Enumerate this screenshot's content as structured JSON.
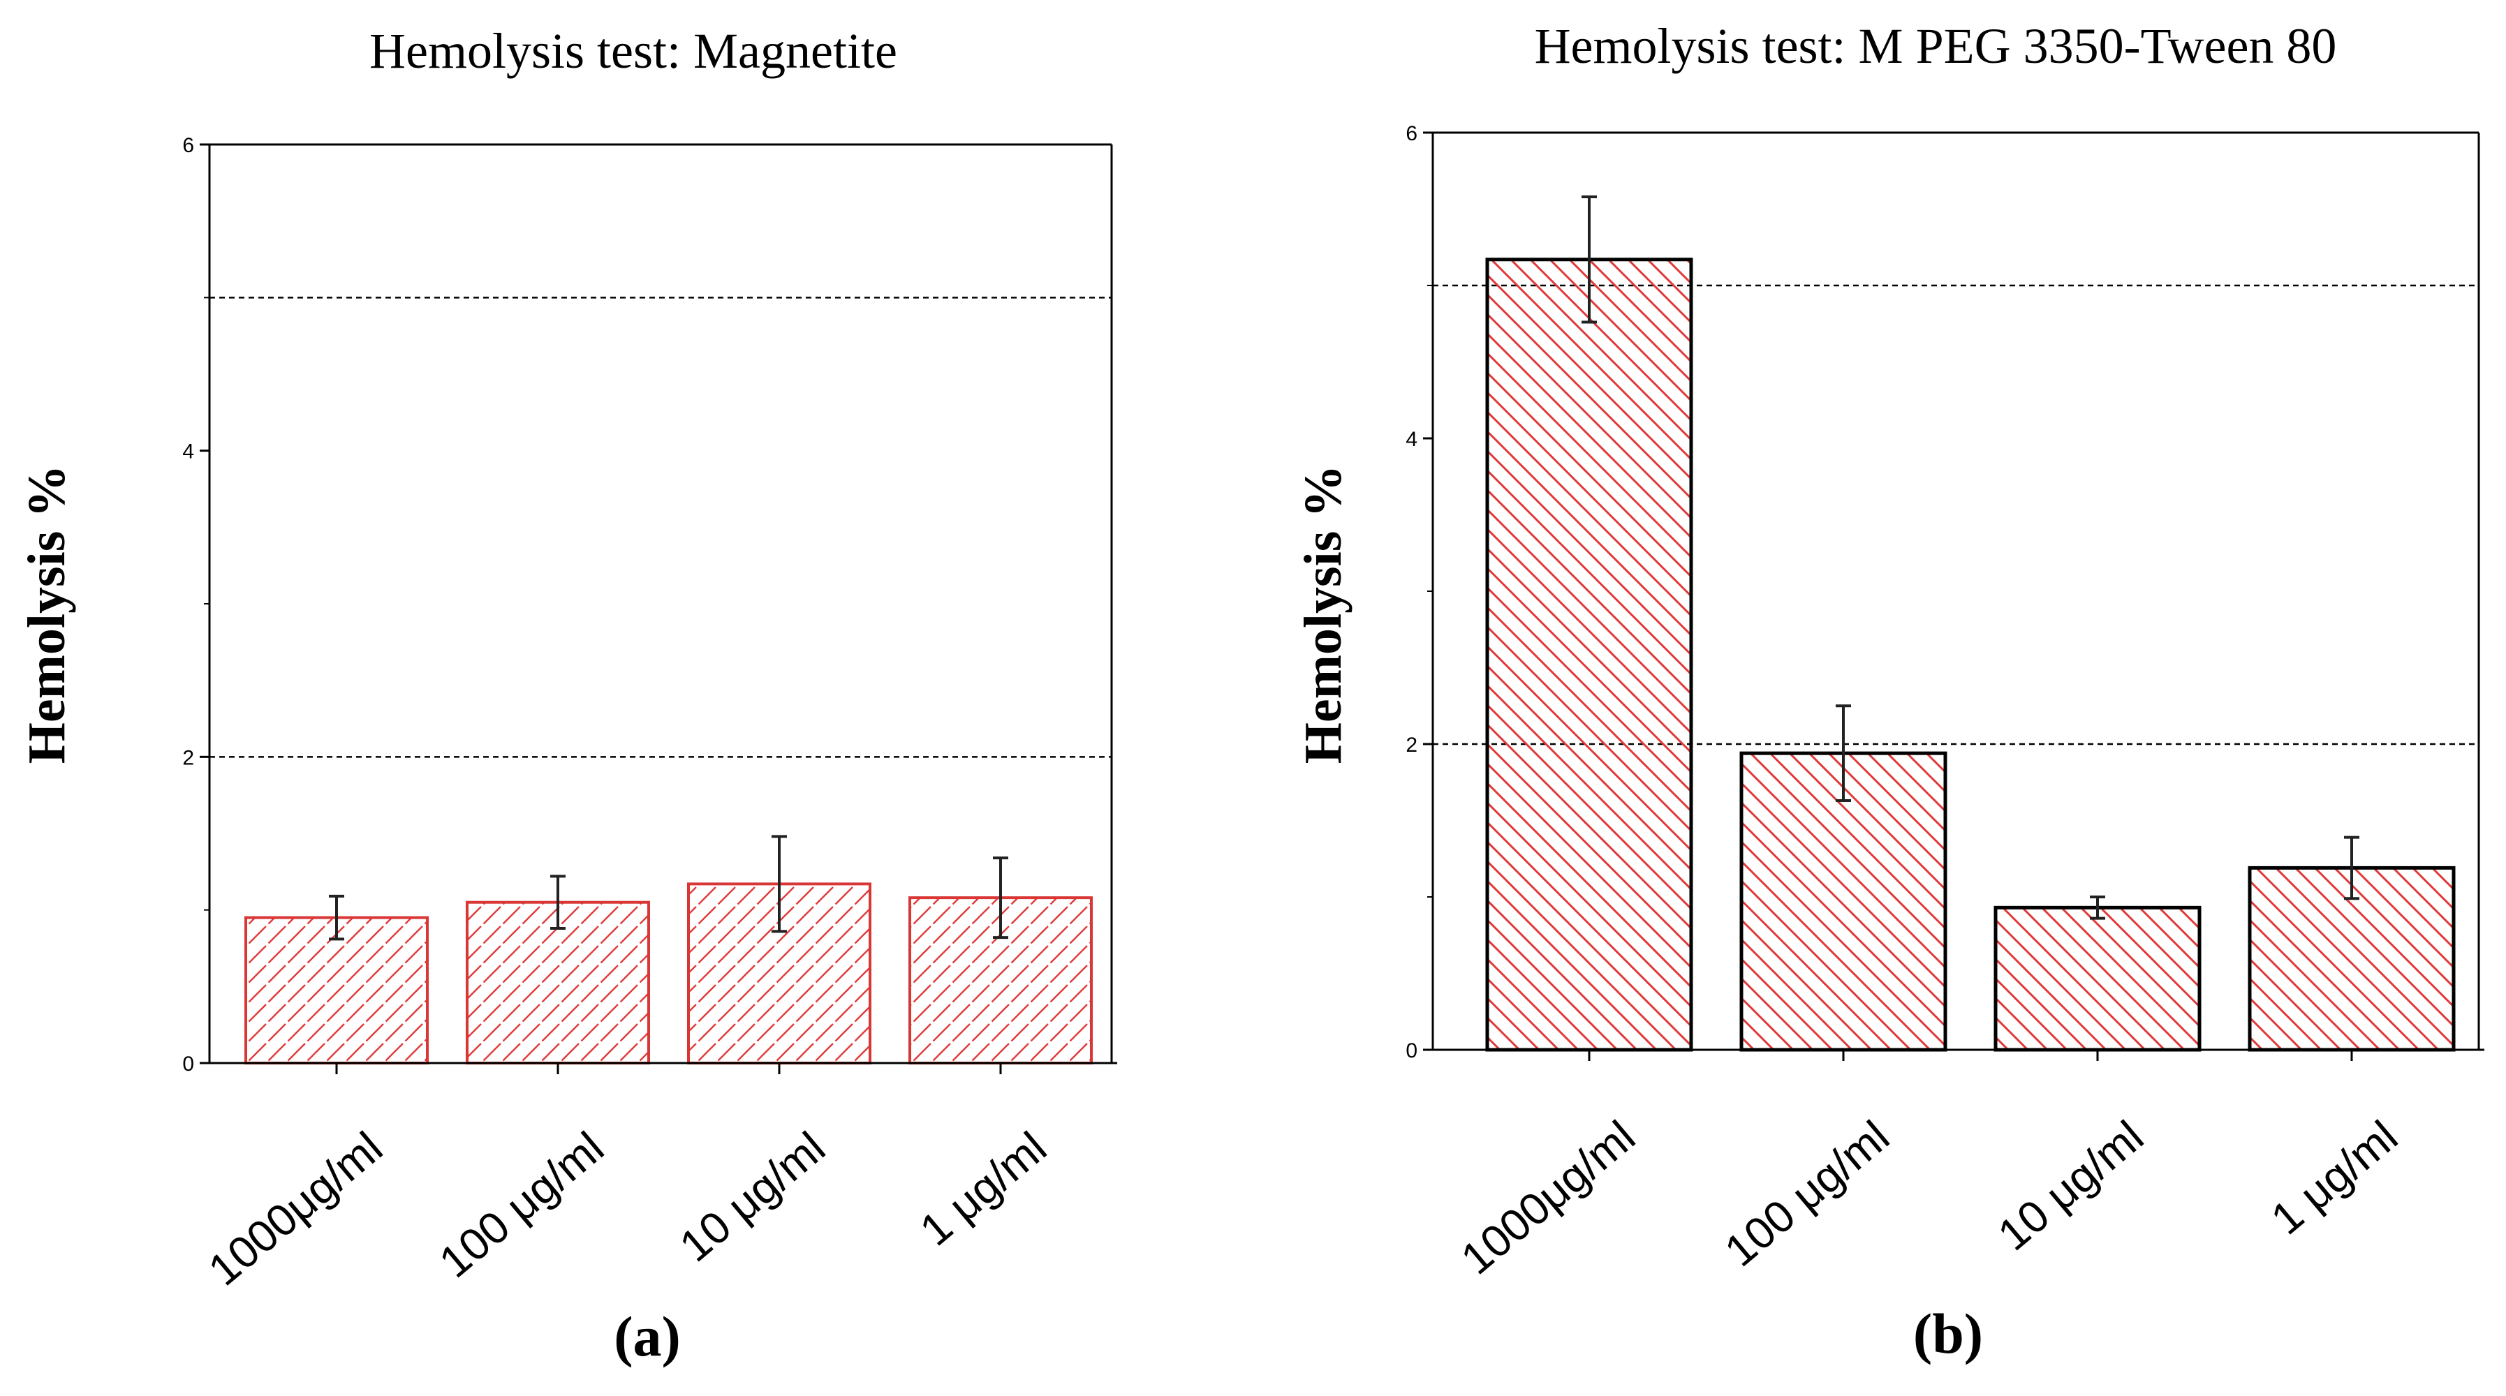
{
  "chart_data": [
    {
      "type": "bar",
      "panel_label": "(a)",
      "title": "Hemolysis test: Magnetite",
      "xlabel": "",
      "ylabel": "Hemolysis %",
      "ylim": [
        0,
        6
      ],
      "yticks": [
        "0",
        "2",
        "4",
        "6"
      ],
      "categories": [
        "1000μg/ml",
        "100 μg/ml",
        "10 μg/ml",
        "1 μg/ml"
      ],
      "values": [
        0.95,
        1.05,
        1.17,
        1.08
      ],
      "errors": [
        0.14,
        0.17,
        0.31,
        0.26
      ],
      "reference_lines": [
        2,
        5
      ],
      "bar_fill": "hatched",
      "hatch_direction": "forward",
      "bar_color": "#e03a3a",
      "bar_edge_color": "#d93636",
      "grid": false
    },
    {
      "type": "bar",
      "panel_label": "(b)",
      "title": "Hemolysis test: M PEG 3350-Tween 80",
      "xlabel": "",
      "ylabel": "Hemolysis %",
      "ylim": [
        0,
        6
      ],
      "yticks": [
        "0",
        "2",
        "4",
        "6"
      ],
      "categories": [
        "1000μg/ml",
        "100 μg/ml",
        "10 μg/ml",
        "1 μg/ml"
      ],
      "values": [
        5.17,
        1.94,
        0.93,
        1.19
      ],
      "errors": [
        0.41,
        0.31,
        0.07,
        0.2
      ],
      "reference_lines": [
        2,
        5
      ],
      "bar_fill": "hatched",
      "hatch_direction": "back",
      "bar_color": "#e03a3a",
      "bar_edge_color": "#000000",
      "grid": false
    }
  ]
}
